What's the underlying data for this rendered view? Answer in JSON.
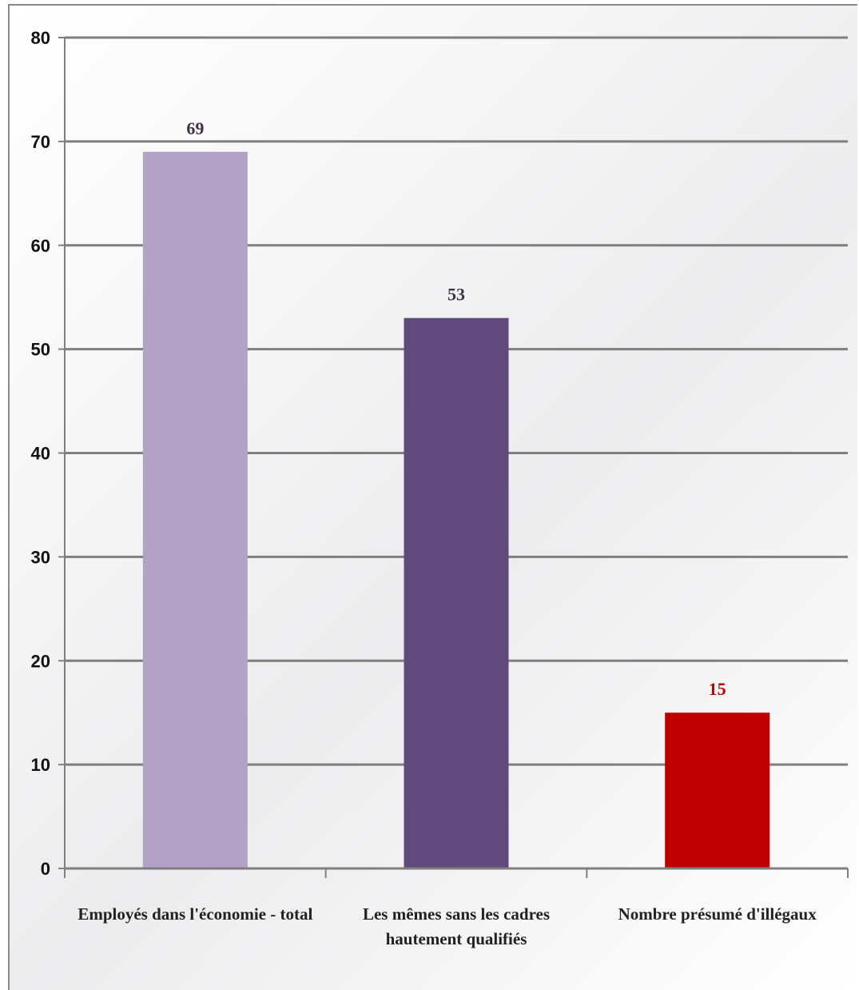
{
  "chart_data": {
    "type": "bar",
    "categories": [
      [
        "Employés dans l'économie - total"
      ],
      [
        "Les mêmes sans les cadres",
        "hautement qualifiés"
      ],
      [
        "Nombre présumé d'illégaux"
      ]
    ],
    "values": [
      69,
      53,
      15
    ],
    "data_labels": [
      "69",
      "53",
      "15"
    ],
    "bar_colors": [
      "#b3a1c7",
      "#604a7b",
      "#c00000"
    ],
    "label_colors": [
      "#3f3151",
      "#3f3151",
      "#c00000"
    ],
    "ylim": [
      0,
      80
    ],
    "yticks": [
      0,
      10,
      20,
      30,
      40,
      50,
      60,
      70,
      80
    ],
    "grid": true,
    "legend": "none"
  }
}
